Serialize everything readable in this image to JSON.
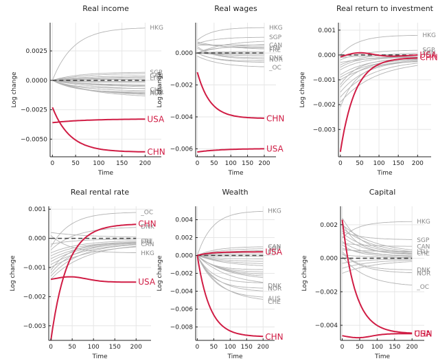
{
  "figure": {
    "ylabel": "Log change",
    "xlabel": "Time"
  },
  "colors": {
    "highlight": "#d01c44",
    "background": "#b3b3b3",
    "zero": "#444444",
    "label_gray": "#888888"
  },
  "chart_data": [
    {
      "type": "line",
      "title": "Real income",
      "xlabel": "Time",
      "ylabel": "Log change",
      "xlim": [
        -5,
        235
      ],
      "ylim": [
        -0.0065,
        0.0049
      ],
      "xticks": [
        0,
        50,
        100,
        150,
        200
      ],
      "xtick_labels": [
        "0",
        "50",
        "100",
        "150",
        "200"
      ],
      "yticks": [
        -0.005,
        -0.0025,
        0.0,
        0.0025
      ],
      "ytick_labels": [
        "−0.0050",
        "−0.0025",
        "0.0000",
        "0.0025"
      ],
      "grid": true,
      "highlight": [
        {
          "label": "USA",
          "start": -0.0036,
          "end": -0.0033,
          "shape": "smooth"
        },
        {
          "label": "CHN",
          "start": -0.0023,
          "end": -0.0061,
          "shape": "decay"
        }
      ],
      "background_labeled": [
        {
          "label": "HKG",
          "end": 0.0045,
          "start": 0.0
        },
        {
          "label": "SGP",
          "end": 0.0007,
          "start": 0.0
        },
        {
          "label": "CAN",
          "end": 0.0004,
          "start": 0.0
        },
        {
          "label": "LTU",
          "end": 0.0002,
          "start": 0.0
        },
        {
          "label": "CHE",
          "end": -0.0008,
          "start": 0.0
        },
        {
          "label": "NOR",
          "end": -0.001,
          "start": 0.0
        },
        {
          "label": "AUS",
          "end": -0.0011,
          "start": 0.0
        }
      ],
      "background_unlabeled_ends": [
        0.0006,
        0.0003,
        0.0001,
        -0.0001,
        -0.0002,
        -0.0004,
        -0.0005,
        -0.0006,
        -0.0007,
        -0.0009,
        -0.0012,
        -0.0013,
        -0.0015
      ]
    },
    {
      "type": "line",
      "title": "Real wages",
      "xlabel": "Time",
      "ylabel": "Log change",
      "xlim": [
        -5,
        235
      ],
      "ylim": [
        -0.0065,
        0.0019
      ],
      "xticks": [
        0,
        50,
        100,
        150,
        200
      ],
      "xtick_labels": [
        "0",
        "50",
        "100",
        "150",
        "200"
      ],
      "yticks": [
        -0.006,
        -0.004,
        -0.002,
        0.0
      ],
      "ytick_labels": [
        "−0.006",
        "−0.004",
        "−0.002",
        "0.000"
      ],
      "grid": true,
      "highlight": [
        {
          "label": "CHN",
          "start": -0.0012,
          "end": -0.0041,
          "shape": "decay"
        },
        {
          "label": "USA",
          "start": -0.0062,
          "end": -0.006,
          "shape": "smooth"
        }
      ],
      "background_labeled": [
        {
          "label": "HKG",
          "end": 0.0016,
          "start": 0.0008
        },
        {
          "label": "SGP",
          "end": 0.001,
          "start": 0.0006
        },
        {
          "label": "CAN",
          "end": 0.0005,
          "start": 0.0005
        },
        {
          "label": "LTU",
          "end": 0.0003,
          "start": 0.0006
        },
        {
          "label": "FRE",
          "end": 0.0002,
          "start": 0.0007
        },
        {
          "label": "DNK",
          "end": -0.0003,
          "start": 0.0004
        },
        {
          "label": "NOR",
          "end": -0.0004,
          "start": 0.0003
        },
        {
          "label": "_OC",
          "end": -0.0009,
          "start": -0.0002
        }
      ],
      "background_unlabeled_ends": [
        0.0008,
        0.0006,
        0.0004,
        0.0001,
        0.0,
        -0.0001,
        -0.0002,
        -0.0005,
        -0.0006
      ]
    },
    {
      "type": "line",
      "title": "Real return to investment",
      "xlabel": "Time",
      "ylabel": "Log change",
      "xlim": [
        -5,
        235
      ],
      "ylim": [
        -0.0041,
        0.0013
      ],
      "xticks": [
        0,
        50,
        100,
        150,
        200
      ],
      "xtick_labels": [
        "0",
        "50",
        "100",
        "150",
        "200"
      ],
      "yticks": [
        -0.003,
        -0.002,
        -0.001,
        0.0,
        0.001
      ],
      "ytick_labels": [
        "−0.003",
        "−0.002",
        "−0.001",
        "0.000",
        "0.001"
      ],
      "grid": true,
      "highlight": [
        {
          "label": "USA",
          "start": -0.0002,
          "end": 0.0,
          "shape": "hump",
          "peak": 0.0001
        },
        {
          "label": "CHN",
          "start": -0.0039,
          "end": -0.0001,
          "shape": "decay"
        }
      ],
      "background_labeled": [
        {
          "label": "HKG",
          "end": 0.0008,
          "start": 0.0
        },
        {
          "label": "SGP",
          "end": 0.0002,
          "start": -0.0002
        },
        {
          "label": "CAN",
          "end": 0.0001,
          "start": -0.0004
        }
      ],
      "background_unlabeled_starts": [
        -0.0001,
        -0.0003,
        -0.0005,
        -0.0006,
        -0.0008,
        -0.0009,
        -0.001,
        -0.0012,
        -0.0013,
        -0.0015,
        -0.0017,
        -0.0019,
        -0.0021
      ]
    },
    {
      "type": "line",
      "title": "Real rental rate",
      "xlabel": "Time",
      "ylabel": "Log change",
      "xlim": [
        -5,
        235
      ],
      "ylim": [
        -0.0035,
        0.0011
      ],
      "xticks": [
        0,
        50,
        100,
        150,
        200
      ],
      "xtick_labels": [
        "0",
        "50",
        "100",
        "150",
        "200"
      ],
      "yticks": [
        -0.003,
        -0.002,
        -0.001,
        0.0,
        0.001
      ],
      "ytick_labels": [
        "−0.003",
        "−0.002",
        "−0.001",
        "0.000",
        "0.001"
      ],
      "grid": true,
      "highlight": [
        {
          "label": "CHN",
          "start": -0.0035,
          "end": 0.0005,
          "shape": "decay"
        },
        {
          "label": "USA",
          "start": -0.0015,
          "end": -0.0015,
          "shape": "hump",
          "peak": -0.00135
        }
      ],
      "background_labeled": [
        {
          "label": "_OC",
          "end": 0.0009,
          "start": -0.0003
        },
        {
          "label": "DNK",
          "end": 0.0004,
          "start": -0.0004
        },
        {
          "label": "LTU",
          "end": -0.0001,
          "start": -0.0006
        },
        {
          "label": "FRE",
          "end": -0.0001,
          "start": -0.0008
        },
        {
          "label": "CAN",
          "end": -0.0002,
          "start": -0.001
        },
        {
          "label": "HKG",
          "end": -0.0005,
          "start": 0.0001
        }
      ],
      "background_unlabeled_starts": [
        -0.0002,
        -0.0005,
        -0.0007,
        -0.0009,
        -0.0011,
        -0.0012,
        -0.0013,
        -0.0014,
        0.0002
      ]
    },
    {
      "type": "line",
      "title": "Wealth",
      "xlabel": "Time",
      "ylabel": "Log change",
      "xlim": [
        -5,
        235
      ],
      "ylim": [
        -0.0095,
        0.0055
      ],
      "xticks": [
        0,
        50,
        100,
        150,
        200
      ],
      "xtick_labels": [
        "0",
        "50",
        "100",
        "150",
        "200"
      ],
      "yticks": [
        -0.008,
        -0.006,
        -0.004,
        -0.002,
        0.0,
        0.002,
        0.004
      ],
      "ytick_labels": [
        "−0.008",
        "−0.006",
        "−0.004",
        "−0.002",
        "0.000",
        "0.002",
        "0.004"
      ],
      "grid": true,
      "highlight": [
        {
          "label": "USA",
          "start": 0.0,
          "end": 0.0004,
          "shape": "decay"
        },
        {
          "label": "CHN",
          "start": 0.0,
          "end": -0.0091,
          "shape": "decay"
        }
      ],
      "background_labeled": [
        {
          "label": "HKG",
          "end": 0.005,
          "start": 0.0
        },
        {
          "label": "CAN",
          "end": 0.001,
          "start": 0.0
        },
        {
          "label": "SGP",
          "end": 0.0008,
          "start": 0.0
        },
        {
          "label": "LTU",
          "end": 0.0004,
          "start": 0.0
        },
        {
          "label": "DNK",
          "end": -0.0034,
          "start": 0.0
        },
        {
          "label": "NOR",
          "end": -0.0037,
          "start": 0.0
        },
        {
          "label": "AUS",
          "end": -0.0048,
          "start": 0.0
        },
        {
          "label": "CHE",
          "end": -0.0052,
          "start": 0.0
        }
      ],
      "background_unlabeled_ends": [
        0.0006,
        0.0002,
        -0.0001,
        -0.0004,
        -0.0007,
        -0.001,
        -0.0013,
        -0.0016,
        -0.0019,
        -0.0022,
        -0.0025,
        -0.0028,
        -0.0031,
        -0.0041
      ]
    },
    {
      "type": "line",
      "title": "Capital",
      "xlabel": "Time",
      "ylabel": "Log change",
      "xlim": [
        -5,
        235
      ],
      "ylim": [
        -0.0049,
        0.0031
      ],
      "xticks": [
        0,
        50,
        100,
        150,
        200
      ],
      "xtick_labels": [
        "0",
        "50",
        "100",
        "150",
        "200"
      ],
      "yticks": [
        -0.004,
        -0.002,
        0.0,
        0.002
      ],
      "ytick_labels": [
        "−0.004",
        "−0.002",
        "0.000",
        "0.002"
      ],
      "grid": true,
      "highlight": [
        {
          "label": "CHN",
          "start": 0.0023,
          "end": -0.0045,
          "shape": "decay"
        },
        {
          "label": "USA",
          "start": -0.0045,
          "end": -0.0045,
          "shape": "hump",
          "peak": -0.0047
        }
      ],
      "background_labeled": [
        {
          "label": "HKG",
          "end": 0.0022,
          "start": 0.0012
        },
        {
          "label": "SGP",
          "end": 0.0011,
          "start": 0.0016
        },
        {
          "label": "CAN",
          "end": 0.0007,
          "start": 0.0009
        },
        {
          "label": "LTU",
          "end": 0.0004,
          "start": 0.0005
        },
        {
          "label": "CHE",
          "end": 0.0003,
          "start": 0.002
        },
        {
          "label": "DNK",
          "end": -0.0007,
          "start": 0.0004
        },
        {
          "label": "NOR",
          "end": -0.0009,
          "start": 0.0003
        },
        {
          "label": "_OC",
          "end": -0.0017,
          "start": 0.0001
        }
      ],
      "background_unlabeled_starts": [
        0.0002,
        0.0006,
        0.0008,
        0.001,
        0.0013,
        0.0015,
        0.0018,
        0.0021,
        0.0024,
        -0.0003,
        -0.0006,
        -0.0009
      ]
    }
  ]
}
